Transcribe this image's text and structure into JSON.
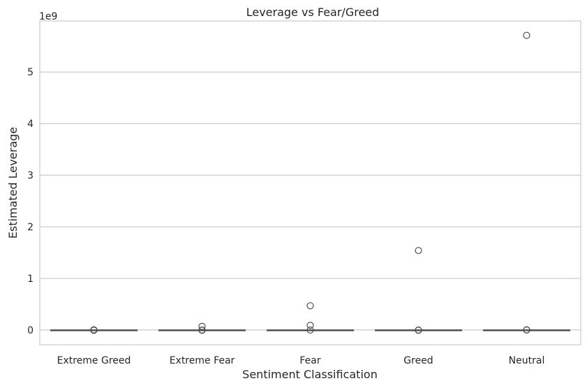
{
  "chart_data": {
    "type": "box",
    "title": "Leverage vs Fear/Greed",
    "xlabel": "Sentiment Classification",
    "ylabel": "Estimated Leverage",
    "offset_label": "1e9",
    "ylim": [
      -0.285,
      5.99
    ],
    "yticks": [
      0,
      1,
      2,
      3,
      4,
      5
    ],
    "ytick_labels": [
      "0",
      "1",
      "2",
      "3",
      "4",
      "5"
    ],
    "grid": "horizontal",
    "categories": [
      "Extreme Greed",
      "Extreme Fear",
      "Fear",
      "Greed",
      "Neutral"
    ],
    "boxes": [
      {
        "category": "Extreme Greed",
        "q1": 0,
        "median": 0,
        "q3": 0,
        "whisker_low": 0,
        "whisker_high": 0,
        "outliers": [
          0.005,
          0.0,
          -0.005
        ]
      },
      {
        "category": "Extreme Fear",
        "q1": 0,
        "median": 0,
        "q3": 0,
        "whisker_low": 0,
        "whisker_high": 0,
        "outliers": [
          0.07,
          0.0,
          -0.005
        ]
      },
      {
        "category": "Fear",
        "q1": 0,
        "median": 0,
        "q3": 0,
        "whisker_low": 0,
        "whisker_high": 0,
        "outliers": [
          0.47,
          0.09,
          0.0
        ]
      },
      {
        "category": "Greed",
        "q1": 0,
        "median": 0,
        "q3": 0,
        "whisker_low": 0,
        "whisker_high": 0,
        "outliers": [
          1.54,
          0.0,
          -0.005
        ]
      },
      {
        "category": "Neutral",
        "q1": 0,
        "median": 0,
        "q3": 0,
        "whisker_low": 0,
        "whisker_high": 0,
        "outliers": [
          5.71,
          0.005,
          0.0
        ]
      }
    ]
  }
}
